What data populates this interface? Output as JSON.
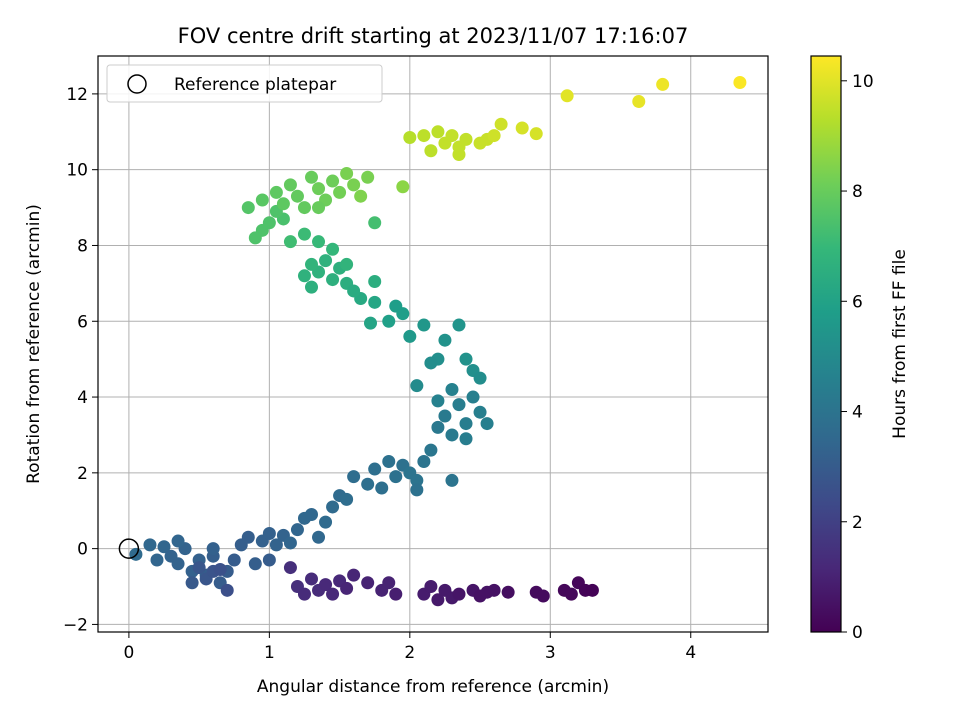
{
  "chart_data": {
    "type": "scatter",
    "title": "FOV centre drift starting at 2023/11/07 17:16:07",
    "xlabel": "Angular distance from reference (arcmin)",
    "ylabel": "Rotation from reference (arcmin)",
    "xlim": [
      -0.22,
      4.55
    ],
    "ylim": [
      -2.2,
      13.0
    ],
    "xticks": [
      0,
      1,
      2,
      3,
      4
    ],
    "yticks": [
      -2,
      0,
      2,
      4,
      6,
      8,
      10,
      12
    ],
    "grid": true,
    "legend": {
      "position": "top-left",
      "entries": [
        {
          "label": "Reference platepar",
          "marker": "open-circle"
        }
      ]
    },
    "reference_point": {
      "x": 0,
      "y": 0
    },
    "colorbar": {
      "label": "Hours from first FF file",
      "range": [
        0,
        10.45
      ],
      "ticks": [
        0,
        2,
        4,
        6,
        8,
        10
      ],
      "colormap": "viridis",
      "colors": [
        "#440154",
        "#482878",
        "#3e4a89",
        "#31688e",
        "#26828e",
        "#1f9e89",
        "#35b779",
        "#6ece58",
        "#b5de2b",
        "#fde725"
      ]
    },
    "points": [
      {
        "x": 0.05,
        "y": -0.15,
        "h": 3.6
      },
      {
        "x": 0.15,
        "y": 0.1,
        "h": 3.5
      },
      {
        "x": 0.2,
        "y": -0.3,
        "h": 3.4
      },
      {
        "x": 0.25,
        "y": 0.05,
        "h": 3.4
      },
      {
        "x": 0.3,
        "y": -0.2,
        "h": 3.3
      },
      {
        "x": 0.35,
        "y": -0.4,
        "h": 3.3
      },
      {
        "x": 0.4,
        "y": 0.0,
        "h": 3.3
      },
      {
        "x": 0.45,
        "y": -0.6,
        "h": 3.2
      },
      {
        "x": 0.5,
        "y": -0.3,
        "h": 3.2
      },
      {
        "x": 0.55,
        "y": -0.7,
        "h": 3.1
      },
      {
        "x": 0.6,
        "y": -0.2,
        "h": 3.1
      },
      {
        "x": 0.65,
        "y": -0.9,
        "h": 3.0
      },
      {
        "x": 0.7,
        "y": -0.6,
        "h": 3.0
      },
      {
        "x": 0.75,
        "y": -0.3,
        "h": 3.0
      },
      {
        "x": 0.8,
        "y": 0.1,
        "h": 3.1
      },
      {
        "x": 0.85,
        "y": 0.3,
        "h": 3.1
      },
      {
        "x": 0.9,
        "y": -0.4,
        "h": 3.1
      },
      {
        "x": 0.95,
        "y": 0.2,
        "h": 3.2
      },
      {
        "x": 1.0,
        "y": 0.4,
        "h": 3.2
      },
      {
        "x": 1.05,
        "y": 0.1,
        "h": 3.3
      },
      {
        "x": 1.1,
        "y": 0.35,
        "h": 3.3
      },
      {
        "x": 1.15,
        "y": 0.15,
        "h": 3.4
      },
      {
        "x": 1.2,
        "y": 0.5,
        "h": 3.4
      },
      {
        "x": 1.25,
        "y": 0.8,
        "h": 3.5
      },
      {
        "x": 1.3,
        "y": 0.9,
        "h": 3.5
      },
      {
        "x": 1.35,
        "y": 0.3,
        "h": 3.5
      },
      {
        "x": 1.4,
        "y": 0.7,
        "h": 3.6
      },
      {
        "x": 1.45,
        "y": 1.1,
        "h": 3.6
      },
      {
        "x": 1.5,
        "y": 1.4,
        "h": 3.6
      },
      {
        "x": 1.55,
        "y": 1.3,
        "h": 3.7
      },
      {
        "x": 1.6,
        "y": 1.9,
        "h": 3.7
      },
      {
        "x": 1.7,
        "y": 1.7,
        "h": 3.8
      },
      {
        "x": 1.75,
        "y": 2.1,
        "h": 3.8
      },
      {
        "x": 1.8,
        "y": 1.6,
        "h": 3.8
      },
      {
        "x": 1.85,
        "y": 2.3,
        "h": 3.9
      },
      {
        "x": 1.9,
        "y": 1.9,
        "h": 3.9
      },
      {
        "x": 1.95,
        "y": 2.2,
        "h": 3.9
      },
      {
        "x": 2.0,
        "y": 2.0,
        "h": 4.0
      },
      {
        "x": 2.05,
        "y": 1.8,
        "h": 4.0
      },
      {
        "x": 2.1,
        "y": 2.3,
        "h": 4.0
      },
      {
        "x": 2.15,
        "y": 2.6,
        "h": 4.1
      },
      {
        "x": 2.2,
        "y": 3.2,
        "h": 4.2
      },
      {
        "x": 2.25,
        "y": 3.5,
        "h": 4.3
      },
      {
        "x": 2.3,
        "y": 3.0,
        "h": 4.3
      },
      {
        "x": 2.35,
        "y": 3.8,
        "h": 4.4
      },
      {
        "x": 2.4,
        "y": 3.3,
        "h": 4.4
      },
      {
        "x": 2.45,
        "y": 4.0,
        "h": 4.5
      },
      {
        "x": 2.5,
        "y": 3.6,
        "h": 4.5
      },
      {
        "x": 2.4,
        "y": 2.9,
        "h": 4.4
      },
      {
        "x": 2.3,
        "y": 4.2,
        "h": 4.6
      },
      {
        "x": 2.2,
        "y": 3.9,
        "h": 4.6
      },
      {
        "x": 2.55,
        "y": 3.3,
        "h": 4.5
      },
      {
        "x": 2.3,
        "y": 1.8,
        "h": 4.0
      },
      {
        "x": 2.05,
        "y": 1.55,
        "h": 3.9
      },
      {
        "x": 0.6,
        "y": 0.0,
        "h": 3.2
      },
      {
        "x": 0.35,
        "y": 0.2,
        "h": 3.4
      },
      {
        "x": 2.05,
        "y": 4.3,
        "h": 5.0
      },
      {
        "x": 2.2,
        "y": 5.0,
        "h": 5.2
      },
      {
        "x": 2.25,
        "y": 5.5,
        "h": 5.3
      },
      {
        "x": 2.35,
        "y": 5.9,
        "h": 5.4
      },
      {
        "x": 2.4,
        "y": 5.0,
        "h": 5.3
      },
      {
        "x": 2.45,
        "y": 4.7,
        "h": 5.2
      },
      {
        "x": 2.5,
        "y": 4.5,
        "h": 5.1
      },
      {
        "x": 2.1,
        "y": 5.9,
        "h": 5.5
      },
      {
        "x": 2.15,
        "y": 4.9,
        "h": 5.1
      },
      {
        "x": 1.9,
        "y": 6.4,
        "h": 5.8
      },
      {
        "x": 1.95,
        "y": 6.2,
        "h": 5.8
      },
      {
        "x": 1.85,
        "y": 6.0,
        "h": 5.9
      },
      {
        "x": 2.0,
        "y": 5.6,
        "h": 5.6
      },
      {
        "x": 1.72,
        "y": 5.95,
        "h": 6.1
      },
      {
        "x": 1.75,
        "y": 6.5,
        "h": 6.2
      },
      {
        "x": 1.65,
        "y": 6.6,
        "h": 6.3
      },
      {
        "x": 1.55,
        "y": 7.0,
        "h": 6.5
      },
      {
        "x": 1.6,
        "y": 6.8,
        "h": 6.4
      },
      {
        "x": 1.5,
        "y": 7.4,
        "h": 6.6
      },
      {
        "x": 1.45,
        "y": 7.1,
        "h": 6.6
      },
      {
        "x": 1.4,
        "y": 7.6,
        "h": 6.7
      },
      {
        "x": 1.35,
        "y": 7.3,
        "h": 6.7
      },
      {
        "x": 1.3,
        "y": 6.9,
        "h": 6.6
      },
      {
        "x": 1.25,
        "y": 7.2,
        "h": 6.7
      },
      {
        "x": 1.55,
        "y": 7.5,
        "h": 6.8
      },
      {
        "x": 1.45,
        "y": 7.9,
        "h": 6.9
      },
      {
        "x": 1.35,
        "y": 8.1,
        "h": 7.0
      },
      {
        "x": 1.25,
        "y": 8.3,
        "h": 7.1
      },
      {
        "x": 1.15,
        "y": 8.1,
        "h": 7.2
      },
      {
        "x": 1.75,
        "y": 7.05,
        "h": 6.5
      },
      {
        "x": 1.75,
        "y": 8.6,
        "h": 7.3
      },
      {
        "x": 1.3,
        "y": 7.5,
        "h": 6.8
      },
      {
        "x": 1.1,
        "y": 8.7,
        "h": 7.4
      },
      {
        "x": 1.05,
        "y": 8.9,
        "h": 7.5
      },
      {
        "x": 0.95,
        "y": 8.4,
        "h": 7.5
      },
      {
        "x": 0.9,
        "y": 8.2,
        "h": 7.5
      },
      {
        "x": 0.85,
        "y": 9.0,
        "h": 7.6
      },
      {
        "x": 0.95,
        "y": 9.2,
        "h": 7.7
      },
      {
        "x": 1.05,
        "y": 9.4,
        "h": 7.8
      },
      {
        "x": 1.1,
        "y": 9.1,
        "h": 7.8
      },
      {
        "x": 1.15,
        "y": 9.6,
        "h": 7.9
      },
      {
        "x": 1.2,
        "y": 9.3,
        "h": 7.9
      },
      {
        "x": 1.25,
        "y": 9.0,
        "h": 7.9
      },
      {
        "x": 1.3,
        "y": 9.8,
        "h": 8.0
      },
      {
        "x": 1.35,
        "y": 9.5,
        "h": 8.1
      },
      {
        "x": 1.4,
        "y": 9.2,
        "h": 8.1
      },
      {
        "x": 1.45,
        "y": 9.7,
        "h": 8.1
      },
      {
        "x": 1.5,
        "y": 9.4,
        "h": 8.2
      },
      {
        "x": 1.55,
        "y": 9.9,
        "h": 8.3
      },
      {
        "x": 1.6,
        "y": 9.6,
        "h": 8.3
      },
      {
        "x": 1.65,
        "y": 9.3,
        "h": 8.4
      },
      {
        "x": 1.7,
        "y": 9.8,
        "h": 8.3
      },
      {
        "x": 1.35,
        "y": 9.0,
        "h": 8.0
      },
      {
        "x": 1.0,
        "y": 8.6,
        "h": 7.5
      },
      {
        "x": 1.95,
        "y": 9.55,
        "h": 8.6
      },
      {
        "x": 2.0,
        "y": 10.85,
        "h": 9.3
      },
      {
        "x": 2.1,
        "y": 10.9,
        "h": 9.4
      },
      {
        "x": 2.2,
        "y": 11.0,
        "h": 9.4
      },
      {
        "x": 2.25,
        "y": 10.7,
        "h": 9.5
      },
      {
        "x": 2.3,
        "y": 10.9,
        "h": 9.5
      },
      {
        "x": 2.35,
        "y": 10.6,
        "h": 9.5
      },
      {
        "x": 2.4,
        "y": 10.8,
        "h": 9.5
      },
      {
        "x": 2.5,
        "y": 10.7,
        "h": 9.6
      },
      {
        "x": 2.55,
        "y": 10.8,
        "h": 9.6
      },
      {
        "x": 2.6,
        "y": 10.9,
        "h": 9.7
      },
      {
        "x": 2.65,
        "y": 11.2,
        "h": 9.7
      },
      {
        "x": 2.8,
        "y": 11.1,
        "h": 9.8
      },
      {
        "x": 2.9,
        "y": 10.95,
        "h": 9.8
      },
      {
        "x": 2.15,
        "y": 10.5,
        "h": 9.4
      },
      {
        "x": 2.35,
        "y": 10.4,
        "h": 9.5
      },
      {
        "x": 3.12,
        "y": 11.95,
        "h": 10.0
      },
      {
        "x": 3.63,
        "y": 11.8,
        "h": 10.1
      },
      {
        "x": 3.8,
        "y": 12.25,
        "h": 10.2
      },
      {
        "x": 4.35,
        "y": 12.3,
        "h": 10.4
      },
      {
        "x": 1.15,
        "y": -0.5,
        "h": 1.4
      },
      {
        "x": 1.2,
        "y": -1.0,
        "h": 1.4
      },
      {
        "x": 1.25,
        "y": -1.2,
        "h": 1.3
      },
      {
        "x": 1.3,
        "y": -0.8,
        "h": 1.3
      },
      {
        "x": 1.35,
        "y": -1.1,
        "h": 1.3
      },
      {
        "x": 1.4,
        "y": -0.95,
        "h": 1.2
      },
      {
        "x": 1.45,
        "y": -1.2,
        "h": 1.2
      },
      {
        "x": 1.5,
        "y": -0.85,
        "h": 1.2
      },
      {
        "x": 1.55,
        "y": -1.05,
        "h": 1.1
      },
      {
        "x": 1.6,
        "y": -0.7,
        "h": 1.1
      },
      {
        "x": 1.7,
        "y": -0.9,
        "h": 1.0
      },
      {
        "x": 1.8,
        "y": -1.1,
        "h": 1.0
      },
      {
        "x": 1.85,
        "y": -0.9,
        "h": 1.0
      },
      {
        "x": 1.9,
        "y": -1.2,
        "h": 0.9
      },
      {
        "x": 2.1,
        "y": -1.2,
        "h": 0.8
      },
      {
        "x": 2.15,
        "y": -1.0,
        "h": 0.8
      },
      {
        "x": 2.2,
        "y": -1.35,
        "h": 0.7
      },
      {
        "x": 2.25,
        "y": -1.1,
        "h": 0.7
      },
      {
        "x": 2.3,
        "y": -1.3,
        "h": 0.7
      },
      {
        "x": 2.35,
        "y": -1.2,
        "h": 0.6
      },
      {
        "x": 2.45,
        "y": -1.1,
        "h": 0.6
      },
      {
        "x": 2.5,
        "y": -1.25,
        "h": 0.5
      },
      {
        "x": 2.55,
        "y": -1.15,
        "h": 0.5
      },
      {
        "x": 2.6,
        "y": -1.1,
        "h": 0.5
      },
      {
        "x": 2.7,
        "y": -1.15,
        "h": 0.4
      },
      {
        "x": 2.9,
        "y": -1.15,
        "h": 0.3
      },
      {
        "x": 2.95,
        "y": -1.25,
        "h": 0.3
      },
      {
        "x": 3.1,
        "y": -1.1,
        "h": 0.2
      },
      {
        "x": 3.15,
        "y": -1.2,
        "h": 0.2
      },
      {
        "x": 3.2,
        "y": -0.9,
        "h": 0.15
      },
      {
        "x": 3.25,
        "y": -1.1,
        "h": 0.1
      },
      {
        "x": 3.3,
        "y": -1.1,
        "h": 0.05
      },
      {
        "x": 0.5,
        "y": -0.5,
        "h": 2.8
      },
      {
        "x": 0.55,
        "y": -0.8,
        "h": 2.8
      },
      {
        "x": 0.6,
        "y": -0.6,
        "h": 2.7
      },
      {
        "x": 0.65,
        "y": -0.55,
        "h": 2.6
      },
      {
        "x": 0.7,
        "y": -1.1,
        "h": 2.5
      },
      {
        "x": 0.45,
        "y": -0.9,
        "h": 2.9
      },
      {
        "x": 1.0,
        "y": -0.3,
        "h": 3.0
      }
    ]
  }
}
